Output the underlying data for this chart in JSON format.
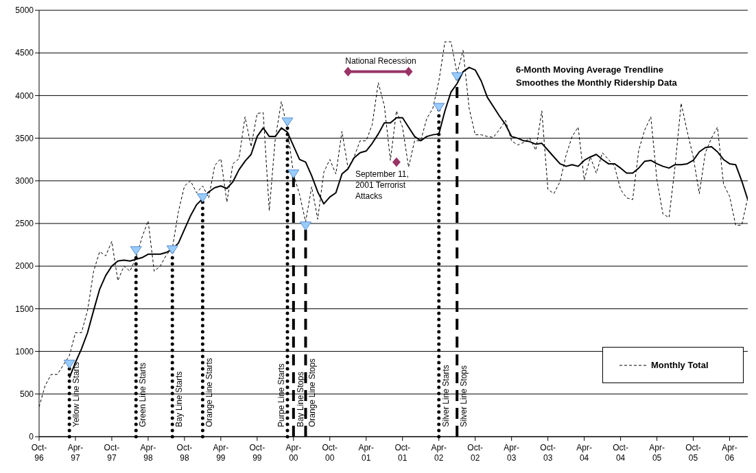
{
  "chart_data": {
    "type": "line",
    "x": [
      "1996-10",
      "1996-11",
      "1996-12",
      "1997-01",
      "1997-02",
      "1997-03",
      "1997-04",
      "1997-05",
      "1997-06",
      "1997-07",
      "1997-08",
      "1997-09",
      "1997-10",
      "1997-11",
      "1997-12",
      "1998-01",
      "1998-02",
      "1998-03",
      "1998-04",
      "1998-05",
      "1998-06",
      "1998-07",
      "1998-08",
      "1998-09",
      "1998-10",
      "1998-11",
      "1998-12",
      "1999-01",
      "1999-02",
      "1999-03",
      "1999-04",
      "1999-05",
      "1999-06",
      "1999-07",
      "1999-08",
      "1999-09",
      "1999-10",
      "1999-11",
      "1999-12",
      "2000-01",
      "2000-02",
      "2000-03",
      "2000-04",
      "2000-05",
      "2000-06",
      "2000-07",
      "2000-08",
      "2000-09",
      "2000-10",
      "2000-11",
      "2000-12",
      "2001-01",
      "2001-02",
      "2001-03",
      "2001-04",
      "2001-05",
      "2001-06",
      "2001-07",
      "2001-08",
      "2001-09",
      "2001-10",
      "2001-11",
      "2001-12",
      "2002-01",
      "2002-02",
      "2002-03",
      "2002-04",
      "2002-05",
      "2002-06",
      "2002-07",
      "2002-08",
      "2002-09",
      "2002-10",
      "2002-11",
      "2002-12",
      "2003-01",
      "2003-02",
      "2003-03",
      "2003-04",
      "2003-05",
      "2003-06",
      "2003-07",
      "2003-08",
      "2003-09",
      "2003-10",
      "2003-11",
      "2003-12",
      "2004-01",
      "2004-02",
      "2004-03",
      "2004-04",
      "2004-05",
      "2004-06",
      "2004-07",
      "2004-08",
      "2004-09",
      "2004-10",
      "2004-11",
      "2004-12",
      "2005-01",
      "2005-02",
      "2005-03",
      "2005-04",
      "2005-05",
      "2005-06",
      "2005-07",
      "2005-08",
      "2005-09",
      "2005-10",
      "2005-11",
      "2005-12",
      "2006-01",
      "2006-02",
      "2006-03",
      "2006-04",
      "2006-05",
      "2006-06",
      "2006-07"
    ],
    "series": [
      {
        "name": "Monthly Total",
        "color": "#000000",
        "line_style": "dashed",
        "values": [
          350,
          600,
          730,
          730,
          840,
          950,
          1220,
          1220,
          1480,
          1940,
          2170,
          2120,
          2290,
          1830,
          2000,
          1940,
          2100,
          2340,
          2530,
          1940,
          2000,
          2130,
          2210,
          2640,
          2940,
          3000,
          2860,
          2940,
          2800,
          3180,
          3260,
          2750,
          3200,
          3260,
          3750,
          3400,
          3790,
          3800,
          2650,
          3500,
          3930,
          3600,
          3080,
          2840,
          2520,
          2930,
          2550,
          3100,
          3250,
          3080,
          3580,
          3150,
          3280,
          3470,
          3470,
          3660,
          4150,
          3880,
          3240,
          3820,
          3630,
          3160,
          3470,
          3470,
          3730,
          3850,
          4170,
          4630,
          4630,
          4260,
          4530,
          3850,
          3540,
          3540,
          3520,
          3510,
          3600,
          3710,
          3470,
          3420,
          3450,
          3500,
          3360,
          3820,
          2900,
          2850,
          2990,
          3300,
          3520,
          3630,
          3010,
          3280,
          3090,
          3330,
          3250,
          3170,
          2900,
          2800,
          2780,
          3360,
          3600,
          3750,
          3010,
          2610,
          2570,
          3170,
          3910,
          3580,
          3280,
          2850,
          3330,
          3500,
          3630,
          2960,
          2820,
          2480,
          2480,
          2800
        ]
      },
      {
        "color": "#000000",
        "line_style": "solid",
        "values": [
          null,
          null,
          null,
          null,
          null,
          690,
          870,
          1030,
          1220,
          1480,
          1730,
          1890,
          2000,
          2060,
          2070,
          2060,
          2080,
          2100,
          2140,
          2140,
          2140,
          2160,
          2200,
          2270,
          2430,
          2590,
          2720,
          2790,
          2870,
          2920,
          2940,
          2910,
          2990,
          3130,
          3230,
          3310,
          3520,
          3620,
          3520,
          3520,
          3620,
          3570,
          3410,
          3250,
          3220,
          3060,
          2870,
          2730,
          2810,
          2860,
          3080,
          3140,
          3270,
          3330,
          3350,
          3440,
          3550,
          3680,
          3680,
          3740,
          3740,
          3630,
          3520,
          3470,
          3520,
          3540,
          3550,
          3820,
          4040,
          4140,
          4280,
          4330,
          4300,
          4170,
          3980,
          3870,
          3760,
          3660,
          3520,
          3500,
          3470,
          3460,
          3430,
          3440,
          3360,
          3280,
          3200,
          3170,
          3190,
          3170,
          3240,
          3280,
          3310,
          3250,
          3200,
          3200,
          3150,
          3090,
          3090,
          3150,
          3230,
          3240,
          3200,
          3170,
          3150,
          3190,
          3190,
          3200,
          3240,
          3340,
          3390,
          3400,
          3340,
          3250,
          3200,
          3190,
          3000,
          2780
        ]
      },
      {
        "type": "scatter",
        "marker": "triangle",
        "color": "#99ccff",
        "x": [
          "1997-03",
          "1998-02",
          "1998-08",
          "1999-01",
          "2000-03",
          "2000-04",
          "2000-06",
          "2002-04",
          "2002-07"
        ],
        "values": [
          850,
          2180,
          2190,
          2800,
          3690,
          3080,
          2470,
          3860,
          4220
        ]
      },
      {
        "type": "line",
        "marker": "diamond",
        "color": "#993366",
        "x": [
          "2001-01",
          "2001-11"
        ],
        "values": [
          4280,
          4280
        ]
      },
      {
        "type": "scatter",
        "marker": "diamond",
        "color": "#993366",
        "x": [
          "2001-09"
        ],
        "values": [
          3220
        ]
      }
    ],
    "xlim": [
      "1996-10",
      "2006-07"
    ],
    "xticks": [
      {
        "value": "1996-10",
        "label": "Oct-96"
      },
      {
        "value": "1997-04",
        "label": "Apr-97"
      },
      {
        "value": "1997-10",
        "label": "Oct-97"
      },
      {
        "value": "1998-04",
        "label": "Apr-98"
      },
      {
        "value": "1998-10",
        "label": "Oct-98"
      },
      {
        "value": "1999-04",
        "label": "Apr-99"
      },
      {
        "value": "1999-10",
        "label": "Oct-99"
      },
      {
        "value": "2000-04",
        "label": "Apr-00"
      },
      {
        "value": "2000-10",
        "label": "Oct-00"
      },
      {
        "value": "2001-04",
        "label": "Apr-01"
      },
      {
        "value": "2001-10",
        "label": "Oct-01"
      },
      {
        "value": "2002-04",
        "label": "Apr-02"
      },
      {
        "value": "2002-10",
        "label": "Oct-02"
      },
      {
        "value": "2003-04",
        "label": "Apr-03"
      },
      {
        "value": "2003-10",
        "label": "Oct-03"
      },
      {
        "value": "2004-04",
        "label": "Apr-04"
      },
      {
        "value": "2004-10",
        "label": "Oct-04"
      },
      {
        "value": "2005-04",
        "label": "Apr-05"
      },
      {
        "value": "2005-10",
        "label": "Oct-05"
      },
      {
        "value": "2006-04",
        "label": "Apr-06"
      }
    ],
    "ylim": [
      0,
      5000
    ],
    "yticks": [
      0,
      500,
      1000,
      1500,
      2000,
      2500,
      3000,
      3500,
      4000,
      4500,
      5000
    ],
    "grid": "y",
    "legend": "bottom right",
    "ref_lines": [
      {
        "axis": "x",
        "value": "1997-03",
        "label": "Yellow Line Starts",
        "line_style": "dotted",
        "color": "#000000"
      },
      {
        "axis": "x",
        "value": "1998-02",
        "label": "Green Line Starts",
        "line_style": "dotted",
        "color": "#000000"
      },
      {
        "axis": "x",
        "value": "1998-08",
        "label": "Bay Line Starts",
        "line_style": "dotted",
        "color": "#000000"
      },
      {
        "axis": "x",
        "value": "1999-01",
        "label": "Orange Line Starts",
        "line_style": "dotted",
        "color": "#000000"
      },
      {
        "axis": "x",
        "value": "2000-03",
        "label": "Purpe Line Starts",
        "line_style": "dotted",
        "color": "#000000"
      },
      {
        "axis": "x",
        "value": "2000-04",
        "label": "Bay Line Stops",
        "line_style": "dashed",
        "color": "#000000"
      },
      {
        "axis": "x",
        "value": "2000-06",
        "label": "Orange Line Stops",
        "line_style": "dashed",
        "color": "#000000"
      },
      {
        "axis": "x",
        "value": "2002-04",
        "label": "Silver Line Starts",
        "line_style": "dotted",
        "color": "#000000"
      },
      {
        "axis": "x",
        "value": "2002-07",
        "label": "Silver Line Stops",
        "line_style": "dashed",
        "color": "#000000"
      }
    ],
    "annotations": [
      {
        "text": "National Recession",
        "x": "2001-01",
        "y": 4280
      },
      {
        "text": "September 11, 2001 Terrorist Attacks",
        "x": "2001-09",
        "y": 3220
      },
      "6-Month Moving Average Trendline Smoothes the Monthly Ridership Data"
    ]
  }
}
